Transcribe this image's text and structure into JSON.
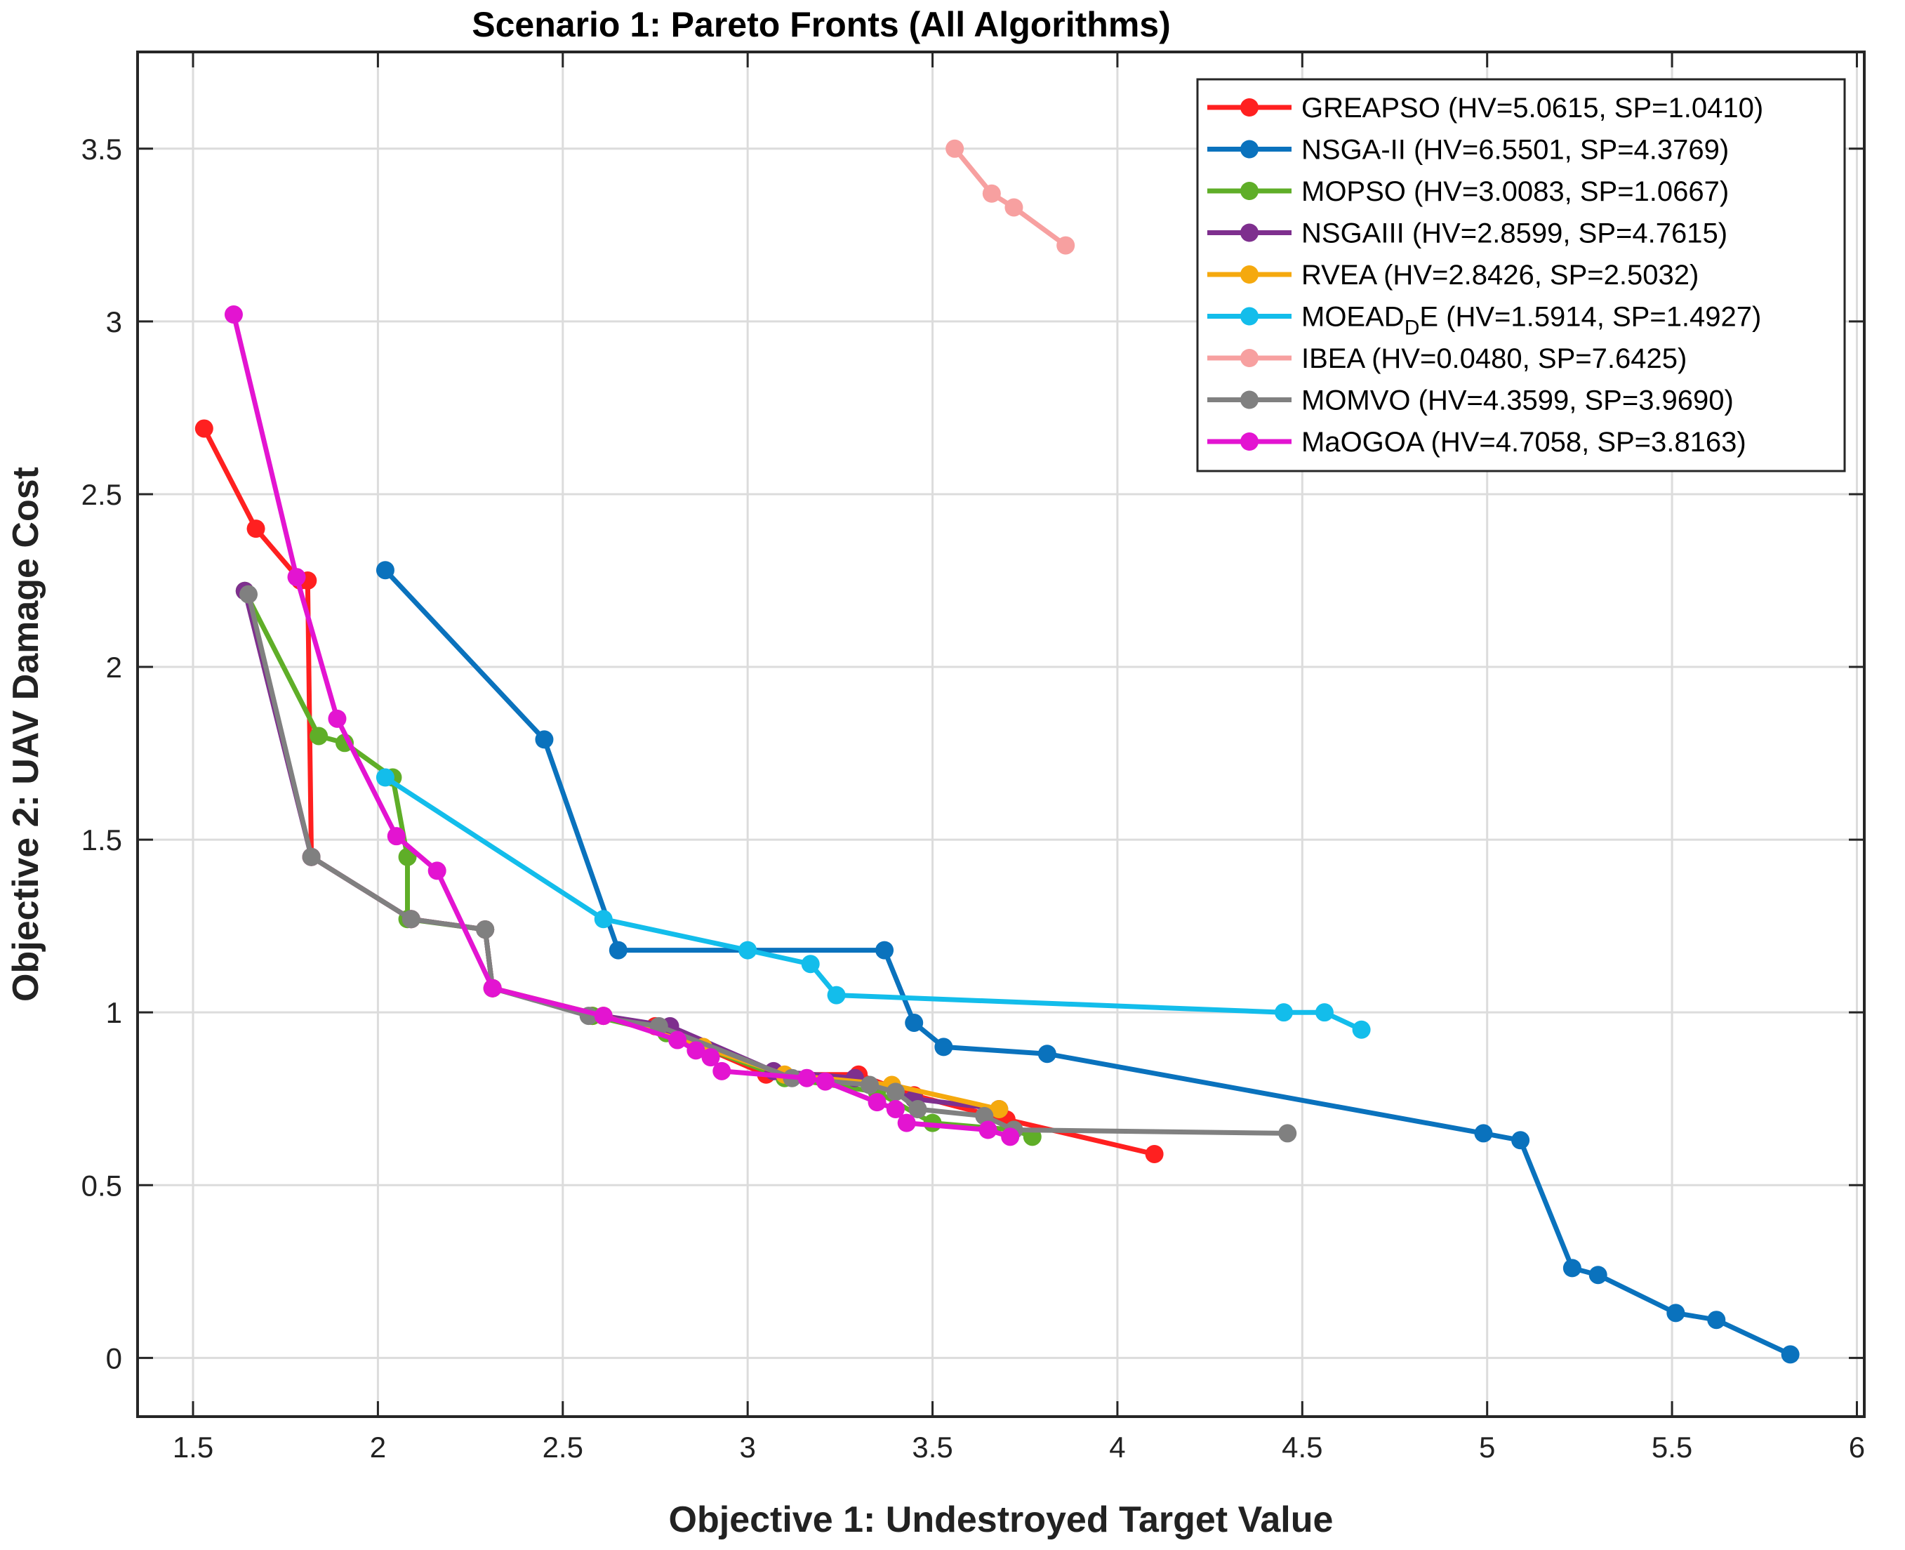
{
  "chart_data": {
    "type": "line",
    "title": "Scenario 1: Pareto Fronts (All Algorithms)",
    "xlabel": "Objective 1: Undestroyed Target Value",
    "ylabel": "Objective 2: UAV Damage Cost",
    "xlim": [
      1.35,
      6.02
    ],
    "ylim": [
      -0.17,
      3.78
    ],
    "xticks": [
      1.5,
      2,
      2.5,
      3,
      3.5,
      4,
      4.5,
      5,
      5.5,
      6
    ],
    "xtick_labels": [
      "1.5",
      "2",
      "2.5",
      "3",
      "3.5",
      "4",
      "4.5",
      "5",
      "5.5",
      "6"
    ],
    "yticks": [
      0,
      0.5,
      1,
      1.5,
      2,
      2.5,
      3,
      3.5
    ],
    "ytick_labels": [
      "0",
      "0.5",
      "1",
      "1.5",
      "2",
      "2.5",
      "3",
      "3.5"
    ],
    "grid": true,
    "legend_position": "top-right",
    "series": [
      {
        "name": "GREAPSO",
        "legend_prefix": "GREAPSO",
        "legend_suffix": " (HV=5.0615, SP=1.0410)",
        "color": "#ff2020",
        "points": [
          [
            1.53,
            2.69
          ],
          [
            1.67,
            2.4
          ],
          [
            1.79,
            2.25
          ],
          [
            1.81,
            2.25
          ],
          [
            1.82,
            1.45
          ],
          [
            2.09,
            1.27
          ],
          [
            2.29,
            1.24
          ],
          [
            2.31,
            1.07
          ],
          [
            2.58,
            0.99
          ],
          [
            2.75,
            0.96
          ],
          [
            3.05,
            0.82
          ],
          [
            3.3,
            0.82
          ],
          [
            3.45,
            0.76
          ],
          [
            3.7,
            0.69
          ],
          [
            4.1,
            0.59
          ]
        ]
      },
      {
        "name": "NSGA-II",
        "legend_prefix": "NSGA-II",
        "legend_suffix": " (HV=6.5501, SP=4.3769)",
        "color": "#0a72bd",
        "points": [
          [
            2.02,
            2.28
          ],
          [
            2.45,
            1.79
          ],
          [
            2.65,
            1.18
          ],
          [
            3.37,
            1.18
          ],
          [
            3.45,
            0.97
          ],
          [
            3.53,
            0.9
          ],
          [
            3.81,
            0.88
          ],
          [
            4.99,
            0.65
          ],
          [
            5.09,
            0.63
          ],
          [
            5.23,
            0.26
          ],
          [
            5.3,
            0.24
          ],
          [
            5.51,
            0.13
          ],
          [
            5.62,
            0.11
          ],
          [
            5.82,
            0.01
          ]
        ]
      },
      {
        "name": "MOPSO",
        "legend_prefix": "MOPSO",
        "legend_suffix": " (HV=3.0083, SP=1.0667)",
        "color": "#5fae28",
        "points": [
          [
            1.64,
            2.22
          ],
          [
            1.84,
            1.8
          ],
          [
            1.91,
            1.78
          ],
          [
            2.04,
            1.68
          ],
          [
            2.08,
            1.45
          ],
          [
            2.08,
            1.27
          ],
          [
            2.29,
            1.24
          ],
          [
            2.31,
            1.07
          ],
          [
            2.58,
            0.99
          ],
          [
            2.78,
            0.94
          ],
          [
            3.1,
            0.81
          ],
          [
            3.35,
            0.77
          ],
          [
            3.5,
            0.68
          ],
          [
            3.72,
            0.66
          ],
          [
            3.77,
            0.64
          ]
        ]
      },
      {
        "name": "NSGAIII",
        "legend_prefix": "NSGAIII",
        "legend_suffix": " (HV=2.8599, SP=4.7615)",
        "color": "#7e2f8e",
        "points": [
          [
            1.64,
            2.22
          ],
          [
            1.82,
            1.45
          ],
          [
            2.09,
            1.27
          ],
          [
            2.29,
            1.24
          ],
          [
            2.31,
            1.07
          ],
          [
            2.61,
            0.99
          ],
          [
            2.79,
            0.96
          ],
          [
            3.07,
            0.83
          ],
          [
            3.29,
            0.81
          ],
          [
            3.45,
            0.75
          ],
          [
            3.68,
            0.72
          ]
        ]
      },
      {
        "name": "RVEA",
        "legend_prefix": "RVEA",
        "legend_suffix": " (HV=2.8426, SP=2.5032)",
        "color": "#f5a90e",
        "points": [
          [
            2.31,
            1.07
          ],
          [
            2.61,
            0.99
          ],
          [
            2.88,
            0.9
          ],
          [
            3.1,
            0.82
          ],
          [
            3.39,
            0.79
          ],
          [
            3.68,
            0.72
          ]
        ]
      },
      {
        "name": "MOEAD_DE",
        "legend_prefix": "MOEAD",
        "legend_sub": "D",
        "legend_suffix": "E (HV=1.5914, SP=1.4927)",
        "color": "#13bdeb",
        "points": [
          [
            2.02,
            1.68
          ],
          [
            2.61,
            1.27
          ],
          [
            3.0,
            1.18
          ],
          [
            3.17,
            1.14
          ],
          [
            3.24,
            1.05
          ],
          [
            4.45,
            1.0
          ],
          [
            4.56,
            1.0
          ],
          [
            4.66,
            0.95
          ]
        ]
      },
      {
        "name": "IBEA",
        "legend_prefix": "IBEA",
        "legend_suffix": " (HV=0.0480, SP=7.6425)",
        "color": "#f7a0a0",
        "points": [
          [
            3.56,
            3.5
          ],
          [
            3.66,
            3.37
          ],
          [
            3.72,
            3.33
          ],
          [
            3.86,
            3.22
          ]
        ]
      },
      {
        "name": "MOMVO",
        "legend_prefix": "MOMVO",
        "legend_suffix": " (HV=4.3599, SP=3.9690)",
        "color": "#808080",
        "points": [
          [
            1.65,
            2.21
          ],
          [
            1.82,
            1.45
          ],
          [
            2.09,
            1.27
          ],
          [
            2.29,
            1.24
          ],
          [
            2.31,
            1.07
          ],
          [
            2.57,
            0.99
          ],
          [
            2.76,
            0.96
          ],
          [
            3.12,
            0.81
          ],
          [
            3.33,
            0.79
          ],
          [
            3.4,
            0.77
          ],
          [
            3.46,
            0.72
          ],
          [
            3.64,
            0.7
          ],
          [
            3.72,
            0.66
          ],
          [
            4.46,
            0.65
          ]
        ]
      },
      {
        "name": "MaOGOA",
        "legend_prefix": "MaOGOA",
        "legend_suffix": " (HV=4.7058, SP=3.8163)",
        "color": "#e314d1",
        "points": [
          [
            1.61,
            3.02
          ],
          [
            1.78,
            2.26
          ],
          [
            1.89,
            1.85
          ],
          [
            2.05,
            1.51
          ],
          [
            2.16,
            1.41
          ],
          [
            2.31,
            1.07
          ],
          [
            2.61,
            0.99
          ],
          [
            2.81,
            0.92
          ],
          [
            2.86,
            0.89
          ],
          [
            2.9,
            0.87
          ],
          [
            2.93,
            0.83
          ],
          [
            3.16,
            0.81
          ],
          [
            3.21,
            0.8
          ],
          [
            3.35,
            0.74
          ],
          [
            3.4,
            0.72
          ],
          [
            3.43,
            0.68
          ],
          [
            3.65,
            0.66
          ],
          [
            3.71,
            0.64
          ]
        ]
      }
    ]
  }
}
